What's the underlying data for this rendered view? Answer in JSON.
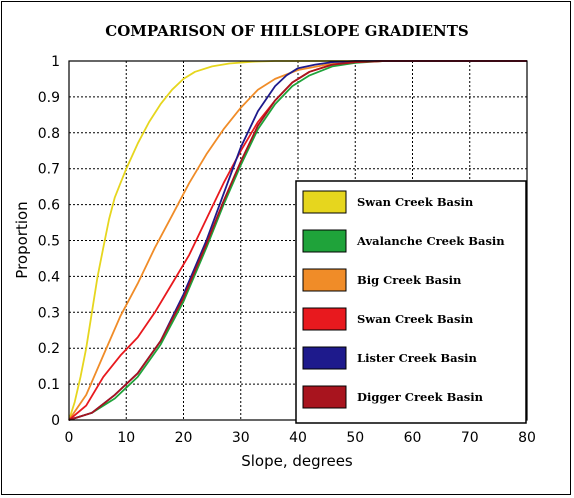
{
  "chart_data": {
    "type": "line",
    "title": "COMPARISON OF HILLSLOPE GRADIENTS",
    "xlabel": "Slope, degrees",
    "ylabel": "Proportion",
    "xlim": [
      0,
      80
    ],
    "ylim": [
      0,
      1
    ],
    "x_ticks": [
      "0",
      "10",
      "20",
      "30",
      "40",
      "50",
      "60",
      "70",
      "80"
    ],
    "y_ticks": [
      "0",
      "0.1",
      "0.2",
      "0.3",
      "0.4",
      "0.5",
      "0.6",
      "0.7",
      "0.8",
      "0.9",
      "1"
    ],
    "grid": true,
    "legend_position": "lower-right",
    "series": [
      {
        "name": "Swan Creek Basin",
        "color": "#e6d61e",
        "x": [
          0,
          1,
          2,
          3,
          4,
          5,
          6,
          7,
          8,
          9,
          10,
          12,
          14,
          16,
          18,
          20,
          22,
          25,
          28,
          32,
          36,
          40,
          80
        ],
        "y": [
          0,
          0.05,
          0.12,
          0.2,
          0.3,
          0.4,
          0.48,
          0.56,
          0.62,
          0.66,
          0.7,
          0.77,
          0.83,
          0.88,
          0.92,
          0.95,
          0.97,
          0.985,
          0.993,
          0.998,
          1.0,
          1.0,
          1.0
        ]
      },
      {
        "name": "Avalanche Creek Basin",
        "color": "#1fa33a",
        "x": [
          0,
          4,
          8,
          12,
          16,
          20,
          24,
          27,
          30,
          33,
          36,
          39,
          42,
          46,
          50,
          55,
          80
        ],
        "y": [
          0,
          0.02,
          0.06,
          0.12,
          0.21,
          0.33,
          0.48,
          0.6,
          0.71,
          0.81,
          0.88,
          0.93,
          0.96,
          0.985,
          0.995,
          1.0,
          1.0
        ]
      },
      {
        "name": "Big Creek Basin",
        "color": "#f08c28",
        "x": [
          0,
          3,
          6,
          9,
          12,
          15,
          18,
          21,
          24,
          27,
          30,
          33,
          36,
          40,
          45,
          50,
          55,
          80
        ],
        "y": [
          0,
          0.07,
          0.18,
          0.29,
          0.38,
          0.48,
          0.57,
          0.66,
          0.74,
          0.81,
          0.87,
          0.92,
          0.95,
          0.975,
          0.99,
          0.998,
          1.0,
          1.0
        ]
      },
      {
        "name": "Swan Creek Basin",
        "color": "#e8191e",
        "x": [
          0,
          3,
          6,
          9,
          12,
          15,
          18,
          21,
          24,
          27,
          30,
          33,
          36,
          39,
          42,
          46,
          50,
          55,
          80
        ],
        "y": [
          0,
          0.04,
          0.12,
          0.18,
          0.23,
          0.3,
          0.38,
          0.46,
          0.56,
          0.66,
          0.75,
          0.83,
          0.89,
          0.94,
          0.97,
          0.99,
          0.997,
          1.0,
          1.0
        ]
      },
      {
        "name": "Lister Creek Basin",
        "color": "#1e1a8c",
        "x": [
          0,
          4,
          8,
          12,
          16,
          20,
          24,
          27,
          30,
          33,
          36,
          38,
          40,
          43,
          46,
          50,
          80
        ],
        "y": [
          0,
          0.02,
          0.07,
          0.13,
          0.22,
          0.35,
          0.5,
          0.63,
          0.76,
          0.86,
          0.93,
          0.96,
          0.98,
          0.99,
          0.997,
          1.0,
          1.0
        ]
      },
      {
        "name": "Digger Creek Basin",
        "color": "#a8141e",
        "x": [
          0,
          4,
          8,
          12,
          16,
          20,
          24,
          27,
          30,
          33,
          36,
          39,
          42,
          46,
          50,
          55,
          80
        ],
        "y": [
          0,
          0.02,
          0.07,
          0.13,
          0.22,
          0.34,
          0.49,
          0.61,
          0.72,
          0.82,
          0.89,
          0.94,
          0.97,
          0.99,
          0.997,
          1.0,
          1.0
        ]
      }
    ]
  }
}
